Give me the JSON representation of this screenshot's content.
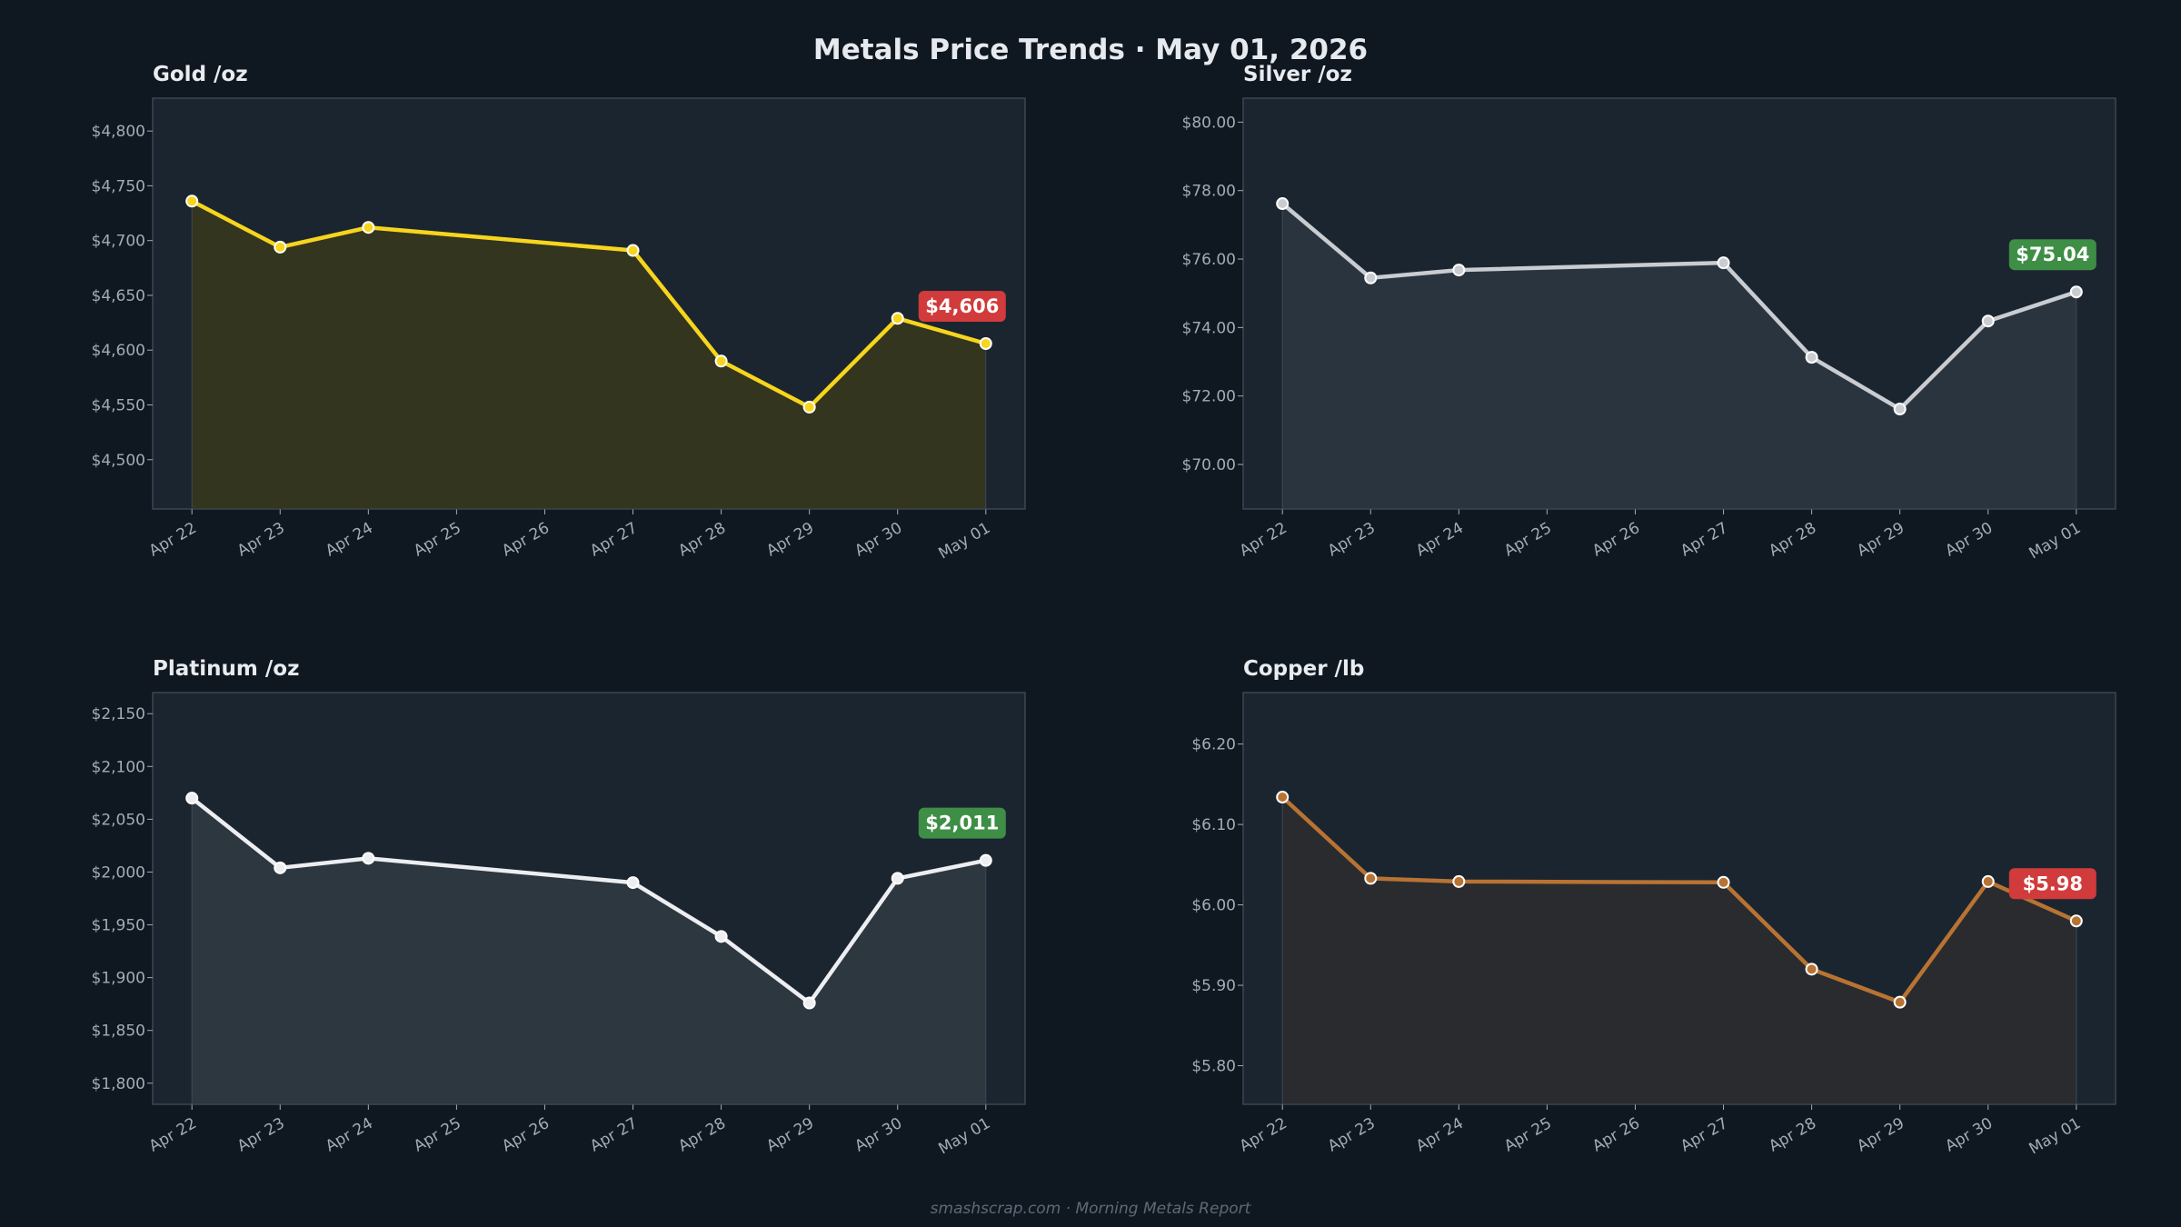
{
  "suptitle": "Metals Price Trends  ·  May 01, 2026",
  "footer": "smashscrap.com  ·  Morning Metals Report",
  "chart_data": [
    {
      "type": "line",
      "title": "Gold  /oz",
      "color": "#f7d51d",
      "fill": "#33351f",
      "categories": [
        "Apr 22",
        "Apr 23",
        "Apr 24",
        "Apr 25",
        "Apr 26",
        "Apr 27",
        "Apr 28",
        "Apr 29",
        "Apr 30",
        "May 01"
      ],
      "points": [
        {
          "x": "Apr 22",
          "y": 4736
        },
        {
          "x": "Apr 23",
          "y": 4694
        },
        {
          "x": "Apr 24",
          "y": 4712
        },
        {
          "x": "Apr 27",
          "y": 4691
        },
        {
          "x": "Apr 28",
          "y": 4590
        },
        {
          "x": "Apr 29",
          "y": 4548
        },
        {
          "x": "Apr 30",
          "y": 4629
        },
        {
          "x": "May 01",
          "y": 4606
        }
      ],
      "ylim": [
        4455,
        4830
      ],
      "yticks": [
        4500,
        4550,
        4600,
        4650,
        4700,
        4750,
        4800
      ],
      "ytick_labels": [
        "$4,500",
        "$4,550",
        "$4,600",
        "$4,650",
        "$4,700",
        "$4,750",
        "$4,800"
      ],
      "badge": {
        "text": "$4,606",
        "color": "#d13b3b"
      }
    },
    {
      "type": "line",
      "title": "Silver  /oz",
      "color": "#c9ccd0",
      "fill": "#2a343f",
      "categories": [
        "Apr 22",
        "Apr 23",
        "Apr 24",
        "Apr 25",
        "Apr 26",
        "Apr 27",
        "Apr 28",
        "Apr 29",
        "Apr 30",
        "May 01"
      ],
      "points": [
        {
          "x": "Apr 22",
          "y": 77.62
        },
        {
          "x": "Apr 23",
          "y": 75.45
        },
        {
          "x": "Apr 24",
          "y": 75.68
        },
        {
          "x": "Apr 27",
          "y": 75.89
        },
        {
          "x": "Apr 28",
          "y": 73.13
        },
        {
          "x": "Apr 29",
          "y": 71.62
        },
        {
          "x": "Apr 30",
          "y": 74.19
        },
        {
          "x": "May 01",
          "y": 75.04
        }
      ],
      "ylim": [
        68.7,
        80.7
      ],
      "yticks": [
        70,
        72,
        74,
        76,
        78,
        80
      ],
      "ytick_labels": [
        "$70.00",
        "$72.00",
        "$74.00",
        "$76.00",
        "$78.00",
        "$80.00"
      ],
      "badge": {
        "text": "$75.04",
        "color": "#3e8e46"
      }
    },
    {
      "type": "line",
      "title": "Platinum  /oz",
      "color": "#eceef1",
      "fill": "#2c3740",
      "categories": [
        "Apr 22",
        "Apr 23",
        "Apr 24",
        "Apr 25",
        "Apr 26",
        "Apr 27",
        "Apr 28",
        "Apr 29",
        "Apr 30",
        "May 01"
      ],
      "points": [
        {
          "x": "Apr 22",
          "y": 2070
        },
        {
          "x": "Apr 23",
          "y": 2004
        },
        {
          "x": "Apr 24",
          "y": 2013
        },
        {
          "x": "Apr 27",
          "y": 1990
        },
        {
          "x": "Apr 28",
          "y": 1939
        },
        {
          "x": "Apr 29",
          "y": 1876
        },
        {
          "x": "Apr 30",
          "y": 1994
        },
        {
          "x": "May 01",
          "y": 2011
        }
      ],
      "ylim": [
        1780,
        2170
      ],
      "yticks": [
        1800,
        1850,
        1900,
        1950,
        2000,
        2050,
        2100,
        2150
      ],
      "ytick_labels": [
        "$1,800",
        "$1,850",
        "$1,900",
        "$1,950",
        "$2,000",
        "$2,050",
        "$2,100",
        "$2,150"
      ],
      "badge": {
        "text": "$2,011",
        "color": "#3e8e46"
      }
    },
    {
      "type": "line",
      "title": "Copper  /lb",
      "color": "#b87333",
      "fill": "#2a2b2e",
      "categories": [
        "Apr 22",
        "Apr 23",
        "Apr 24",
        "Apr 25",
        "Apr 26",
        "Apr 27",
        "Apr 28",
        "Apr 29",
        "Apr 30",
        "May 01"
      ],
      "points": [
        {
          "x": "Apr 22",
          "y": 6.134
        },
        {
          "x": "Apr 23",
          "y": 6.033
        },
        {
          "x": "Apr 24",
          "y": 6.029
        },
        {
          "x": "Apr 27",
          "y": 6.028
        },
        {
          "x": "Apr 28",
          "y": 5.92
        },
        {
          "x": "Apr 29",
          "y": 5.879
        },
        {
          "x": "Apr 30",
          "y": 6.029
        },
        {
          "x": "May 01",
          "y": 5.98
        }
      ],
      "ylim": [
        5.752,
        6.264
      ],
      "yticks": [
        5.8,
        5.9,
        6.0,
        6.1,
        6.2
      ],
      "ytick_labels": [
        "$5.80",
        "$5.90",
        "$6.00",
        "$6.10",
        "$6.20"
      ],
      "badge": {
        "text": "$5.98",
        "color": "#d13b3b"
      }
    }
  ]
}
